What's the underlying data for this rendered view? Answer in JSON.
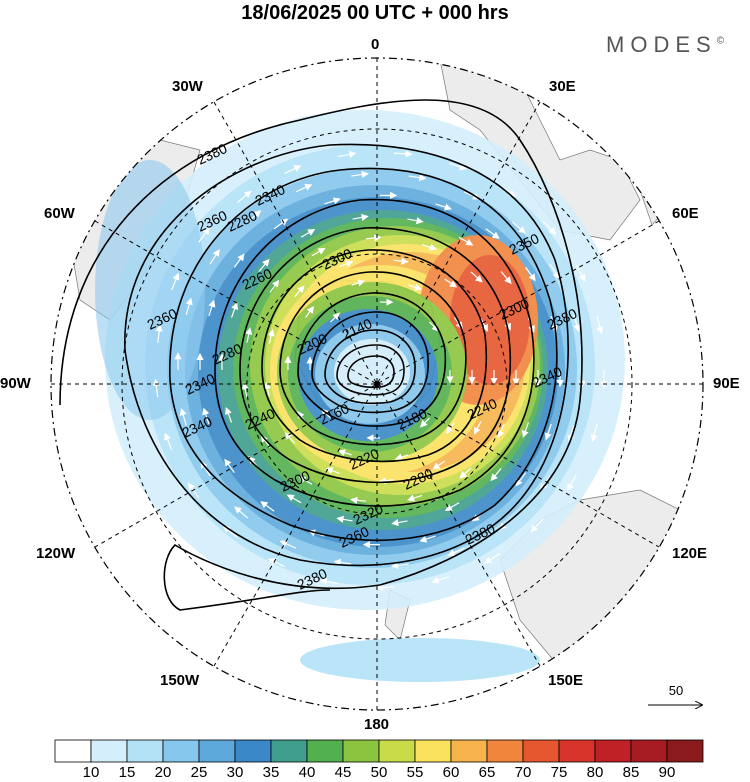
{
  "title": "18/06/2025  00 UTC  + 000 hrs",
  "brand": "MODES",
  "brand_mark": "©",
  "longitude_labels": {
    "top": "0",
    "top_right": "30E",
    "upper_right": "60E",
    "right": "90E",
    "lower_right": "120E",
    "bottom_right": "150E",
    "bottom": "180",
    "bottom_left": "150W",
    "lower_left": "120W",
    "left": "90W",
    "upper_left": "60W",
    "top_left": "30W"
  },
  "contour_labels": [
    "2380",
    "2360",
    "2340",
    "2280",
    "2360",
    "2300",
    "2260",
    "2140",
    "2280",
    "2200",
    "2340",
    "2240",
    "2160",
    "2180",
    "2240",
    "2220",
    "2280",
    "2300",
    "2320",
    "2360",
    "2380",
    "2380",
    "2350",
    "2300",
    "2380",
    "2340",
    "2340"
  ],
  "reference_vector": "50",
  "legend": {
    "ticks": [
      "10",
      "15",
      "20",
      "25",
      "30",
      "35",
      "40",
      "45",
      "50",
      "55",
      "60",
      "65",
      "70",
      "75",
      "80",
      "85",
      "90"
    ],
    "colors": [
      "#ffffff",
      "#d4effb",
      "#b3e2f7",
      "#86c7ee",
      "#5ea9dc",
      "#3a88c7",
      "#3f9e8c",
      "#52b04e",
      "#8bc53f",
      "#c8dc4a",
      "#fae25e",
      "#f7b44c",
      "#f1853c",
      "#e6572f",
      "#d8342a",
      "#bf2126",
      "#a71b22",
      "#8b1a1d"
    ]
  },
  "colors": {
    "land": "#ececec",
    "contour": "#000000",
    "vectors": "#ffffff"
  }
}
